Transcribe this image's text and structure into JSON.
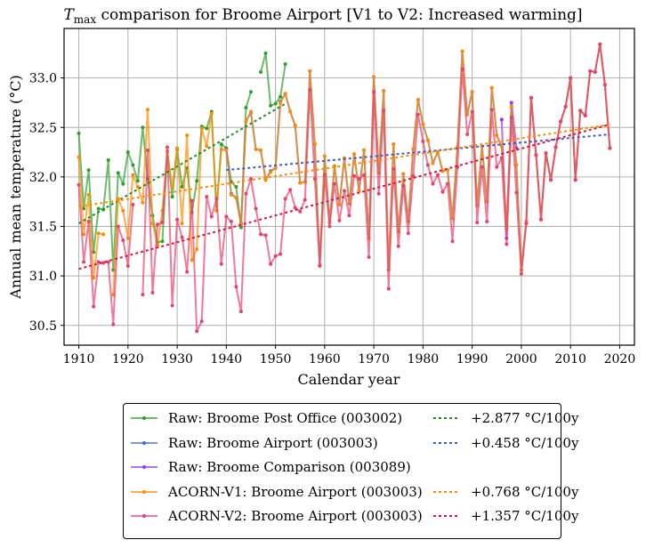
{
  "chart_data": {
    "type": "line",
    "title": "T_max comparison for Broome Airport   [V1 to V2: Increased warming]",
    "title_main_symbol": "T",
    "title_subscript": "max",
    "title_rest": " comparison for Broome Airport   [V1 to V2: Increased warming]",
    "xlabel": "Calendar year",
    "ylabel": "Annual mean temperature (°C)",
    "xlim": [
      1907,
      2023
    ],
    "ylim": [
      30.3,
      33.5
    ],
    "xticks": [
      1910,
      1920,
      1930,
      1940,
      1950,
      1960,
      1970,
      1980,
      1990,
      2000,
      2010,
      2020
    ],
    "yticks": [
      30.5,
      31.0,
      31.5,
      32.0,
      32.5,
      33.0
    ],
    "ytick_labels": [
      "30.5",
      "31.0",
      "31.5",
      "32.0",
      "32.5",
      "33.0"
    ],
    "grid": true,
    "legend_position": "below",
    "series": [
      {
        "name": "Raw: Broome Post Office (003002)",
        "color": "#2ca02c",
        "x": [
          1910,
          1911,
          1912,
          1913,
          1914,
          1915,
          1916,
          1917,
          1918,
          1919,
          1920,
          1921,
          1922,
          1923,
          1924,
          1925,
          1926,
          1927,
          1928,
          1929,
          1930,
          1931,
          1932,
          1933,
          1934,
          1935,
          1936,
          1937,
          1938,
          1939,
          1940,
          1941,
          1942,
          1943,
          1944,
          1945,
          1946,
          1947,
          1948,
          1949,
          1950,
          1951,
          1952
        ],
        "y": [
          32.44,
          31.68,
          32.07,
          31.24,
          31.68,
          31.67,
          32.17,
          31.06,
          32.04,
          31.93,
          32.25,
          32.12,
          31.96,
          32.5,
          31.98,
          31.61,
          31.34,
          31.35,
          32.26,
          31.8,
          32.28,
          31.9,
          32.09,
          31.64,
          31.96,
          32.51,
          32.49,
          32.66,
          31.66,
          32.33,
          32.29,
          31.95,
          31.9,
          31.49,
          32.7,
          32.86,
          null,
          33.06,
          33.25,
          32.72,
          32.74,
          32.81,
          33.14
        ]
      },
      {
        "name": "Raw: Broome Airport (003003)",
        "color": "#4169e1",
        "x": [
          1940,
          1941,
          1942,
          1943,
          1944,
          1945,
          1946,
          1947,
          1948,
          1949,
          1950,
          1951,
          1952,
          1953,
          1954,
          1955,
          1956,
          1957,
          1958,
          1959,
          1960,
          1961,
          1962,
          1963,
          1964,
          1965,
          1966,
          1967,
          1968,
          1969,
          1970,
          1971,
          1972,
          1973,
          1974,
          1975,
          1976,
          1977,
          1978,
          1979,
          1980,
          1981,
          1982,
          1983,
          1984,
          1985,
          1986,
          1987,
          1988,
          1989,
          1990,
          1991,
          1992,
          1993,
          1994,
          1995,
          1996,
          1997,
          1998,
          1999,
          2000,
          2001,
          2002,
          2003,
          2004,
          2005,
          2006,
          2007,
          2008,
          2009,
          2010,
          2011,
          2012,
          2013,
          2014,
          2015,
          2016,
          2017,
          2018
        ],
        "y": [
          32.28,
          31.83,
          31.79,
          31.53,
          32.56,
          32.65,
          32.28,
          32.27,
          31.97,
          32.06,
          32.09,
          32.76,
          32.84,
          32.66,
          32.52,
          31.94,
          31.95,
          33.07,
          32.33,
          31.11,
          32.21,
          31.54,
          32.11,
          31.72,
          32.19,
          31.73,
          32.23,
          31.86,
          32.27,
          31.38,
          33.01,
          32.04,
          32.87,
          31.06,
          32.33,
          31.45,
          32.03,
          31.55,
          32.28,
          32.78,
          32.53,
          32.37,
          32.14,
          32.25,
          32.06,
          32.07,
          31.58,
          32.3,
          33.27,
          32.63,
          32.86,
          31.71,
          32.31,
          31.75,
          32.9,
          32.42,
          32.31,
          31.48,
          32.71,
          32.12,
          31.06,
          31.55,
          32.8,
          32.22,
          31.57,
          32.24,
          31.97,
          32.3,
          32.56,
          32.71,
          33.0,
          31.97,
          32.67,
          32.62,
          33.07,
          33.06,
          33.34,
          32.93,
          32.29
        ]
      },
      {
        "name": "Raw: Broome Comparison (003089)",
        "color": "#9b30ff",
        "x": [
          1996,
          1997,
          1998,
          1999
        ],
        "y": [
          32.58,
          31.38,
          32.75,
          32.29
        ]
      },
      {
        "name": "ACORN-V1: Broome Airport (003003)",
        "color": "#ff8c00",
        "x": [
          1910,
          1911,
          1912,
          1913,
          1914,
          1915,
          1916,
          1917,
          1918,
          1919,
          1920,
          1921,
          1922,
          1923,
          1924,
          1925,
          1926,
          1927,
          1928,
          1929,
          1930,
          1931,
          1932,
          1933,
          1934,
          1935,
          1936,
          1937,
          1938,
          1939,
          1940,
          1941,
          1942,
          1943,
          1944,
          1945,
          1946,
          1947,
          1948,
          1949,
          1950,
          1951,
          1952,
          1953,
          1954,
          1955,
          1956,
          1957,
          1958,
          1959,
          1960,
          1961,
          1962,
          1963,
          1964,
          1965,
          1966,
          1967,
          1968,
          1969,
          1970,
          1971,
          1972,
          1973,
          1974,
          1975,
          1976,
          1977,
          1978,
          1979,
          1980,
          1981,
          1982,
          1983,
          1984,
          1985,
          1986,
          1987,
          1988,
          1989,
          1990,
          1991,
          1992,
          1993,
          1994,
          1995,
          1996,
          1997,
          1998,
          1999,
          2000,
          2001,
          2002,
          2003,
          2004,
          2005,
          2006,
          2007,
          2008,
          2009,
          2010,
          2011,
          2012,
          2013,
          2014,
          2015,
          2016,
          2017,
          2018
        ],
        "y": [
          32.2,
          31.42,
          31.82,
          30.98,
          31.43,
          31.42,
          null,
          30.81,
          31.78,
          31.66,
          31.38,
          32.02,
          31.9,
          31.74,
          32.68,
          31.53,
          31.31,
          31.66,
          32.26,
          31.9,
          32.29,
          31.53,
          32.42,
          31.16,
          31.27,
          32.49,
          32.31,
          32.64,
          31.66,
          32.28,
          32.27,
          31.82,
          31.79,
          31.52,
          32.56,
          32.66,
          32.28,
          32.27,
          31.97,
          32.05,
          32.09,
          32.75,
          32.84,
          32.66,
          32.52,
          31.94,
          31.95,
          33.07,
          32.33,
          31.11,
          32.21,
          31.54,
          32.11,
          31.72,
          32.19,
          31.73,
          32.23,
          31.86,
          32.27,
          31.38,
          33.01,
          32.04,
          32.87,
          31.06,
          32.33,
          31.45,
          32.03,
          31.55,
          32.28,
          32.78,
          32.53,
          32.37,
          32.14,
          32.25,
          32.06,
          32.07,
          31.58,
          32.3,
          33.27,
          32.63,
          32.86,
          31.71,
          32.31,
          31.75,
          32.9,
          32.42,
          32.31,
          31.48,
          32.71,
          32.12,
          31.06,
          31.55,
          32.8,
          32.22,
          31.57,
          32.24,
          31.97,
          32.3,
          32.56,
          32.71,
          33.0,
          31.97,
          32.67,
          32.62,
          33.07,
          33.06,
          33.34,
          32.93,
          32.29
        ]
      },
      {
        "name": "ACORN-V2: Broome Airport (003003)",
        "color": "#e8416e",
        "x": [
          1910,
          1911,
          1912,
          1913,
          1914,
          1915,
          1916,
          1917,
          1918,
          1919,
          1920,
          1921,
          1922,
          1923,
          1924,
          1925,
          1926,
          1927,
          1928,
          1929,
          1930,
          1931,
          1932,
          1933,
          1934,
          1935,
          1936,
          1937,
          1938,
          1939,
          1940,
          1941,
          1942,
          1943,
          1944,
          1945,
          1946,
          1947,
          1948,
          1949,
          1950,
          1951,
          1952,
          1953,
          1954,
          1955,
          1956,
          1957,
          1958,
          1959,
          1960,
          1961,
          1962,
          1963,
          1964,
          1965,
          1966,
          1967,
          1968,
          1969,
          1970,
          1971,
          1972,
          1973,
          1974,
          1975,
          1976,
          1977,
          1978,
          1979,
          1980,
          1981,
          1982,
          1983,
          1984,
          1985,
          1986,
          1987,
          1988,
          1989,
          1990,
          1991,
          1992,
          1993,
          1994,
          1995,
          1996,
          1997,
          1998,
          1999,
          2000,
          2001,
          2002,
          2003,
          2004,
          2005,
          2006,
          2007,
          2008,
          2009,
          2010,
          2011,
          2012,
          2013,
          2014,
          2015,
          2016,
          2017,
          2018
        ],
        "y": [
          31.92,
          31.14,
          31.55,
          30.69,
          31.14,
          31.13,
          31.14,
          30.51,
          31.5,
          31.36,
          31.1,
          31.72,
          null,
          30.81,
          32.27,
          30.83,
          31.52,
          31.54,
          32.3,
          30.7,
          31.57,
          31.39,
          31.04,
          31.76,
          30.44,
          30.54,
          31.8,
          31.6,
          31.78,
          31.12,
          31.6,
          31.55,
          30.89,
          30.64,
          31.83,
          31.98,
          31.68,
          31.42,
          31.41,
          31.12,
          31.2,
          31.22,
          31.78,
          31.87,
          31.69,
          31.65,
          31.77,
          32.88,
          31.98,
          31.1,
          32.02,
          31.5,
          31.93,
          31.56,
          31.86,
          31.61,
          32.01,
          31.98,
          32.02,
          31.19,
          32.86,
          31.83,
          32.67,
          30.87,
          32.08,
          31.3,
          31.91,
          31.43,
          32.01,
          32.63,
          32.36,
          32.12,
          31.93,
          32.02,
          31.85,
          31.93,
          31.35,
          32.1,
          33.09,
          32.43,
          32.66,
          31.54,
          32.1,
          31.55,
          32.68,
          32.1,
          32.19,
          31.32,
          32.6,
          31.84,
          31.02,
          31.53,
          32.8,
          32.22,
          31.57,
          32.24,
          31.97,
          32.3,
          32.56,
          32.71,
          33.0,
          31.97,
          32.67,
          32.62,
          33.07,
          33.06,
          33.34,
          32.93,
          32.29
        ]
      }
    ],
    "trend_lines": [
      {
        "label": "+2.877 °C/100y",
        "value": "+2.877",
        "unit": "°C/100y",
        "color": "#228b22",
        "x": [
          1910,
          1952
        ],
        "y": [
          31.53,
          32.74
        ]
      },
      {
        "label": "+0.458 °C/100y",
        "value": "+0.458",
        "unit": "°C/100y",
        "color": "#3a5fcd",
        "x": [
          1940,
          2018
        ],
        "y": [
          32.07,
          32.43
        ]
      },
      {
        "label": "+0.768 °C/100y",
        "value": "+0.768",
        "unit": "°C/100y",
        "color": "#ff8c00",
        "x": [
          1910,
          2018
        ],
        "y": [
          31.7,
          32.53
        ]
      },
      {
        "label": "+1.357 °C/100y",
        "value": "+1.357",
        "unit": "°C/100y",
        "color": "#dc143c",
        "x": [
          1910,
          2018
        ],
        "y": [
          31.07,
          32.53
        ]
      }
    ]
  },
  "legend": {
    "series_labels": [
      "Raw: Broome Post Office (003002)",
      "Raw: Broome Airport (003003)",
      "Raw: Broome Comparison (003089)",
      "ACORN-V1: Broome Airport (003003)",
      "ACORN-V2: Broome Airport (003003)"
    ],
    "trend_labels": [
      "+2.877 °C/100y",
      "+0.458 °C/100y",
      "",
      "+0.768 °C/100y",
      "+1.357 °C/100y"
    ]
  }
}
